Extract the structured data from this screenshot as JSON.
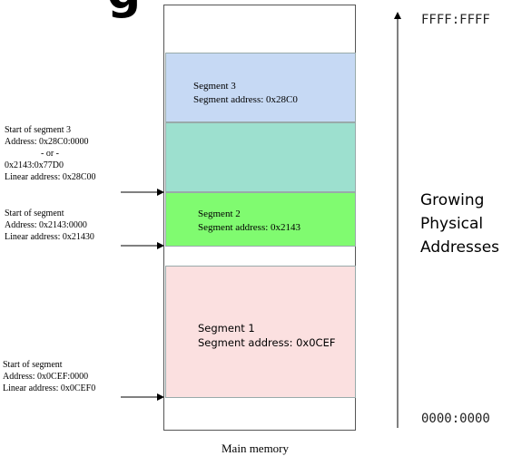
{
  "title_fragment": "g",
  "memory": {
    "caption": "Main memory",
    "segments": {
      "seg3": {
        "name": "Segment 3",
        "address": "Segment address: 0x28C0"
      },
      "seg2": {
        "name": "Segment 2",
        "address": "Segment address: 0x2143"
      },
      "seg1": {
        "name": "Segment 1",
        "address": "Segment address: 0x0CEF"
      }
    },
    "colors": {
      "seg3": "#c6d9f4",
      "overlap": "#9de0cf",
      "seg2": "#80fb70",
      "seg1": "#fbe0e0"
    }
  },
  "annotations": {
    "start3": {
      "line1": "Start of segment 3",
      "line2": "Address:  0x28C0:0000",
      "line3": "- or -",
      "line4": "0x2143:0x77D0",
      "line5": "Linear address: 0x28C00"
    },
    "start2": {
      "line1": "Start of segment",
      "line2": "Address: 0x2143:0000",
      "line3": "Linear address: 0x21430"
    },
    "start1": {
      "line1": "Start of segment",
      "line2": "Address: 0x0CEF:0000",
      "line3": "Linear address: 0x0CEF0"
    }
  },
  "address_axis": {
    "top": "FFFF:FFFF",
    "bottom": "0000:0000",
    "label_line1": "Growing",
    "label_line2": "Physical",
    "label_line3": "Addresses"
  }
}
